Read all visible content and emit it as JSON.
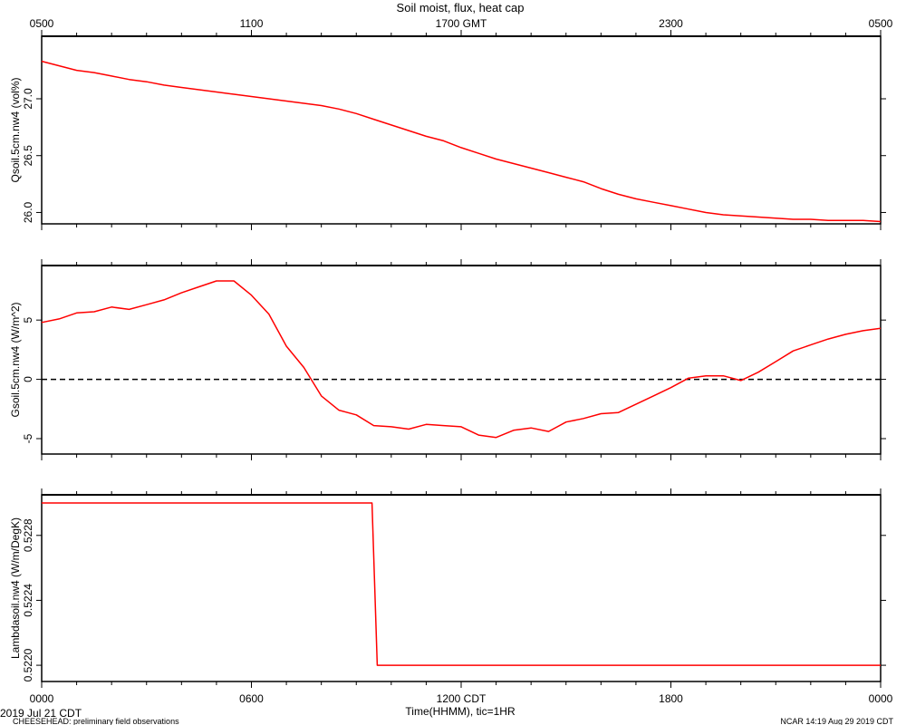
{
  "title": "Soil moist, flux, heat cap",
  "top_axis_ticks": [
    "0500",
    "1100",
    "1700 GMT",
    "2300",
    "0500"
  ],
  "bottom_axis_ticks": [
    "0000",
    "0600",
    "1200 CDT",
    "1800",
    "0000"
  ],
  "xlabel": "Time(HHMM), tic=1HR",
  "date_label": "2019 Jul 21 CDT",
  "footer_left": "CHEESEHEAD: preliminary field observations",
  "footer_right": "NCAR 14:19 Aug 29 2019 CDT",
  "line_color": "#ff0000",
  "chart_data": [
    {
      "type": "line",
      "ylabel": "Qsoil.5cm.nw4 (vol%)",
      "yticks": [
        "26.0",
        "26.5",
        "27.0"
      ],
      "ylim": [
        25.9,
        27.55
      ],
      "xlim": [
        0,
        24
      ],
      "x_unit": "hours CDT",
      "series": [
        {
          "x": [
            0,
            0.5,
            1,
            1.5,
            2,
            2.5,
            3,
            3.5,
            4,
            4.5,
            5,
            5.5,
            6,
            6.5,
            7,
            7.5,
            8,
            8.5,
            9,
            9.5,
            10,
            10.5,
            11,
            11.5,
            12,
            12.5,
            13,
            13.5,
            14,
            14.5,
            15,
            15.5,
            16,
            16.5,
            17,
            17.5,
            18,
            18.5,
            19,
            19.5,
            20,
            20.5,
            21,
            21.5,
            22,
            22.5,
            23,
            23.5,
            24
          ],
          "values": [
            27.33,
            27.29,
            27.25,
            27.23,
            27.2,
            27.17,
            27.15,
            27.12,
            27.1,
            27.08,
            27.06,
            27.04,
            27.02,
            27.0,
            26.98,
            26.96,
            26.94,
            26.91,
            26.87,
            26.82,
            26.77,
            26.72,
            26.67,
            26.63,
            26.57,
            26.52,
            26.47,
            26.43,
            26.39,
            26.35,
            26.31,
            26.27,
            26.21,
            26.16,
            26.12,
            26.09,
            26.06,
            26.03,
            26.0,
            25.98,
            25.97,
            25.96,
            25.95,
            25.94,
            25.94,
            25.93,
            25.93,
            25.93,
            25.92
          ]
        }
      ]
    },
    {
      "type": "line",
      "ylabel": "Gsoil.5cm.nw4 (W/m^2)",
      "yticks": [
        "-5",
        "0",
        "5"
      ],
      "ylim": [
        -6.3,
        9.6
      ],
      "xlim": [
        0,
        24
      ],
      "x_unit": "hours CDT",
      "reference_line": {
        "y": 0,
        "style": "dashed"
      },
      "series": [
        {
          "x": [
            0,
            0.5,
            1,
            1.5,
            2,
            2.5,
            3,
            3.5,
            4,
            4.5,
            5,
            5.5,
            6,
            6.5,
            7,
            7.5,
            8,
            8.5,
            9,
            9.5,
            10,
            10.5,
            11,
            11.5,
            12,
            12.5,
            13,
            13.5,
            14,
            14.5,
            15,
            15.5,
            16,
            16.5,
            17,
            17.5,
            18,
            18.5,
            19,
            19.5,
            20,
            20.5,
            21,
            21.5,
            22,
            22.5,
            23,
            23.5,
            24
          ],
          "values": [
            4.8,
            5.1,
            5.6,
            5.7,
            6.1,
            5.9,
            6.3,
            6.7,
            7.3,
            7.8,
            8.3,
            8.3,
            7.1,
            5.5,
            2.8,
            1.0,
            -1.4,
            -2.6,
            -3.0,
            -3.9,
            -4.0,
            -4.2,
            -3.8,
            -3.9,
            -4.0,
            -4.7,
            -4.9,
            -4.3,
            -4.1,
            -4.4,
            -3.6,
            -3.3,
            -2.9,
            -2.8,
            -2.1,
            -1.4,
            -0.7,
            0.1,
            0.3,
            0.3,
            -0.1,
            0.6,
            1.5,
            2.4,
            2.9,
            3.4,
            3.8,
            4.1,
            4.3
          ]
        }
      ]
    },
    {
      "type": "line",
      "ylabel": "Lambdasoil.nw4 (W/m/DegK)",
      "yticks": [
        "0.5220",
        "0.5224",
        "0.5228"
      ],
      "ylim": [
        0.5219,
        0.52305
      ],
      "xlim": [
        0,
        24
      ],
      "x_unit": "hours CDT",
      "series": [
        {
          "x": [
            0,
            9.45,
            9.6,
            24
          ],
          "values": [
            0.523,
            0.523,
            0.522,
            0.522
          ]
        }
      ]
    }
  ]
}
